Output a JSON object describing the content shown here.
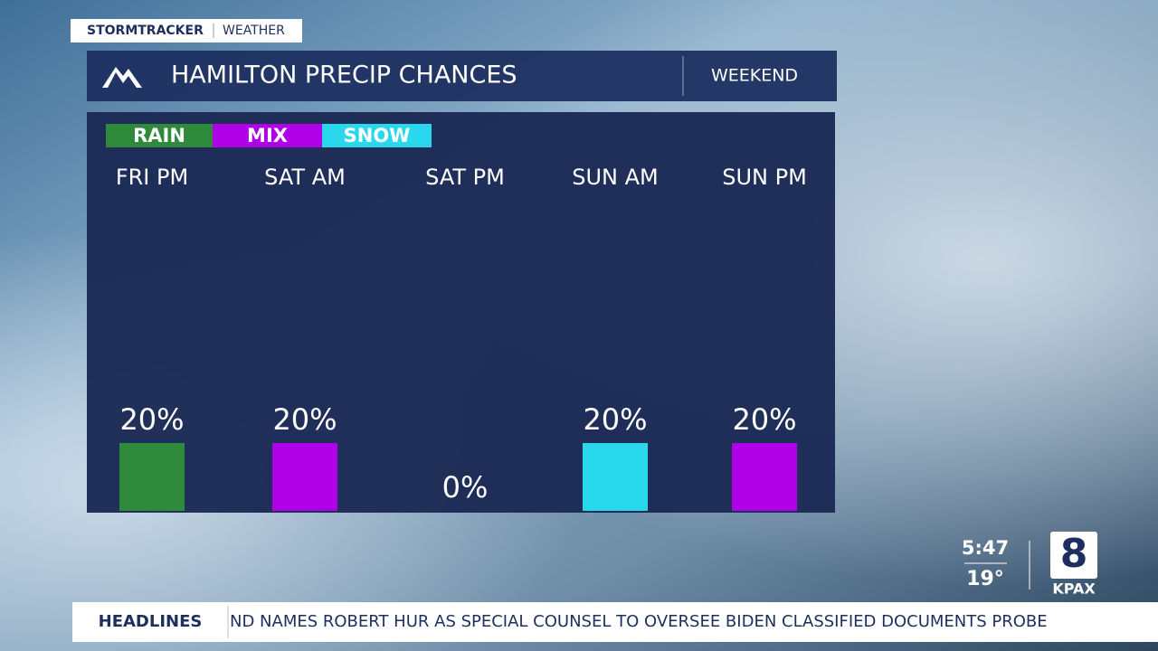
{
  "chart_data": {
    "type": "bar",
    "title": "HAMILTON PRECIP CHANCES",
    "period": "WEEKEND",
    "legend": [
      {
        "name": "RAIN",
        "color": "#2f8a3c"
      },
      {
        "name": "MIX",
        "color": "#b000e8"
      },
      {
        "name": "SNOW",
        "color": "#2ad8ee"
      }
    ],
    "categories": [
      "FRI PM",
      "SAT AM",
      "SAT PM",
      "SUN AM",
      "SUN PM"
    ],
    "values": [
      20,
      20,
      0,
      20,
      20
    ],
    "value_labels": [
      "20%",
      "20%",
      "0%",
      "20%",
      "20%"
    ],
    "colors": [
      "#2f8a3c",
      "#b000e8",
      null,
      "#2ad8ee",
      "#b000e8"
    ]
  },
  "branding": {
    "show": "STORMTRACKER",
    "section": "WEATHER",
    "time": "5:47",
    "temperature": "19°",
    "channel": "8",
    "station": "KPAX"
  },
  "ticker": {
    "label": "HEADLINES",
    "text": "ND NAMES ROBERT HUR AS SPECIAL COUNSEL TO OVERSEE BIDEN CLASSIFIED DOCUMENTS PROBE"
  }
}
